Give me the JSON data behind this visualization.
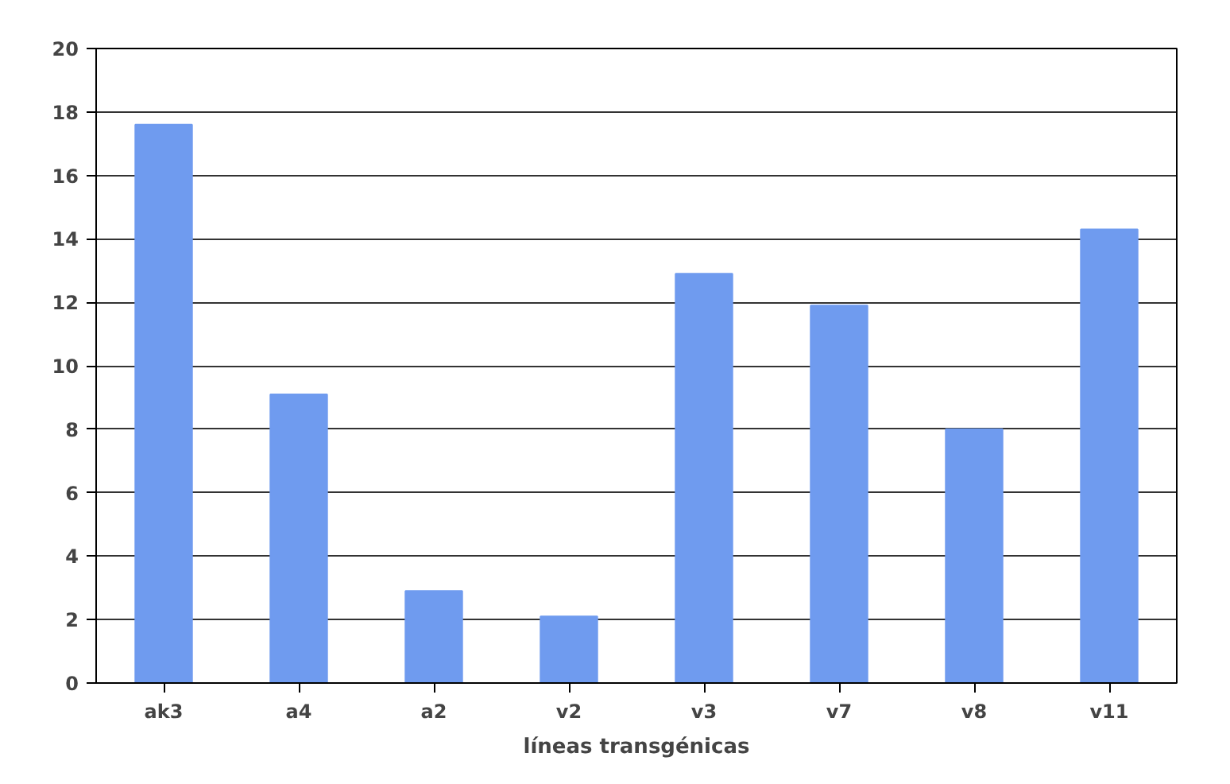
{
  "chart_data": {
    "type": "bar",
    "xlabel": "líneas transgénicas",
    "categories": [
      "ak3",
      "a4",
      "a2",
      "v2",
      "v3",
      "v7",
      "v8",
      "v11"
    ],
    "values": [
      17.6,
      9.1,
      2.9,
      2.1,
      12.9,
      11.9,
      8.0,
      14.3
    ],
    "color": "#6f9bef",
    "ylim": [
      0,
      20
    ],
    "yticks": [
      0,
      2,
      4,
      6,
      8,
      10,
      12,
      14,
      16,
      18,
      20
    ],
    "grid": "y"
  }
}
